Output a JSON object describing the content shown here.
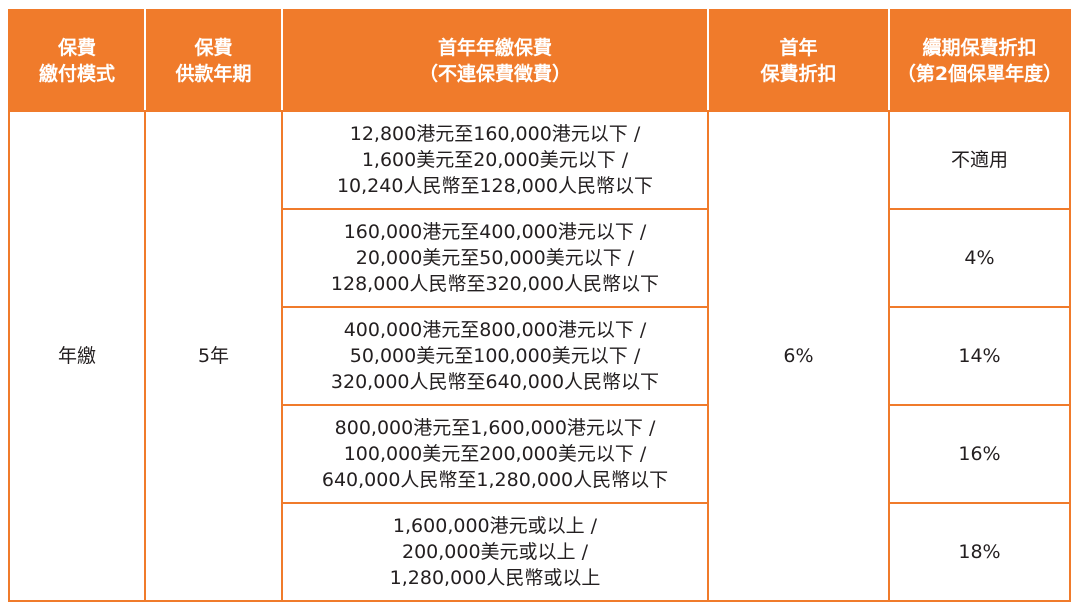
{
  "header": {
    "payment_mode": [
      "保費",
      "繳付模式"
    ],
    "payment_term": [
      "保費",
      "供款年期"
    ],
    "first_year_premium": [
      "首年年繳保費",
      "（不連保費徵費）"
    ],
    "first_year_discount": [
      "首年",
      "保費折扣"
    ],
    "renewal_discount": [
      "續期保費折扣",
      "（第2個保單年度）"
    ]
  },
  "body": {
    "payment_mode": "年繳",
    "payment_term": "5年",
    "first_year_discount": "6%",
    "rows": [
      {
        "premium": [
          "12,800港元至160,000港元以下 /",
          "1,600美元至20,000美元以下 /",
          "10,240人民幣至128,000人民幣以下"
        ],
        "renewal_discount": "不適用"
      },
      {
        "premium": [
          "160,000港元至400,000港元以下 /",
          "20,000美元至50,000美元以下 /",
          "128,000人民幣至320,000人民幣以下"
        ],
        "renewal_discount": "4%"
      },
      {
        "premium": [
          "400,000港元至800,000港元以下 /",
          "50,000美元至100,000美元以下 /",
          "320,000人民幣至640,000人民幣以下"
        ],
        "renewal_discount": "14%"
      },
      {
        "premium": [
          "800,000港元至1,600,000港元以下 /",
          "100,000美元至200,000美元以下 /",
          "640,000人民幣至1,280,000人民幣以下"
        ],
        "renewal_discount": "16%"
      },
      {
        "premium": [
          "1,600,000港元或以上 /",
          "200,000美元或以上 /",
          "1,280,000人民幣或以上"
        ],
        "renewal_discount": "18%"
      }
    ]
  },
  "colors": {
    "header_bg": "#f07b2b",
    "header_text": "#ffffff",
    "body_text": "#231f20",
    "border": "#f07b2b"
  }
}
